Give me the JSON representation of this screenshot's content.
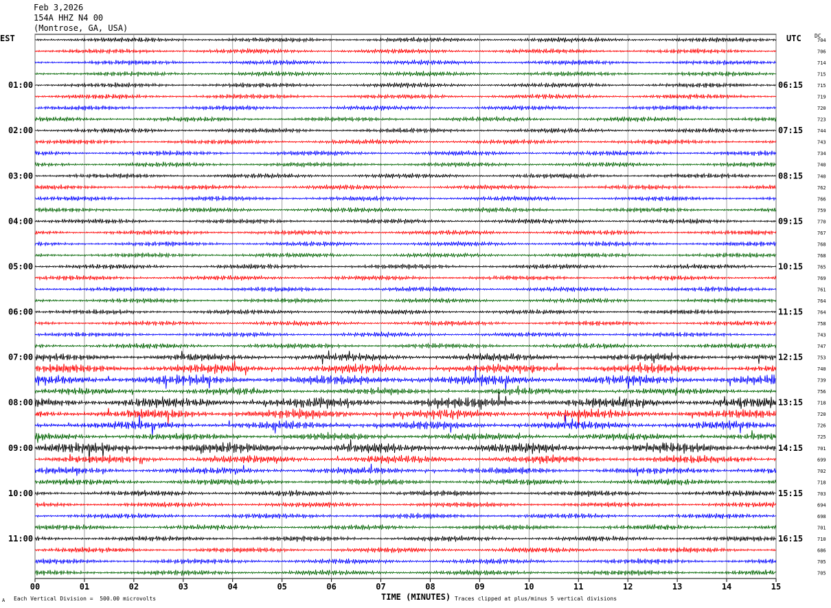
{
  "header": {
    "date": "Feb 3,2026",
    "station": "154A HHZ N4 00",
    "location": "(Montrose, GA, USA)"
  },
  "left_timezone": "EST",
  "right_timezone": "UTC",
  "dc_header": "DC",
  "footer": {
    "scale": "Each Vertical Division =  500.00 microvolts",
    "x_label": "TIME (MINUTES)",
    "clip_note": "Traces clipped at plus/minus 5 vertical divisions",
    "corner_mark": "A"
  },
  "colors": {
    "trace_cycle": [
      "#000000",
      "#ff0000",
      "#0000ff",
      "#006400"
    ],
    "grid": "#888888"
  },
  "chart_data": {
    "type": "line",
    "title": "154A HHZ N4 00",
    "xlabel": "TIME (MINUTES)",
    "xlim": [
      0,
      15
    ],
    "x_ticks": [
      "00",
      "01",
      "02",
      "03",
      "04",
      "05",
      "06",
      "07",
      "08",
      "09",
      "10",
      "11",
      "12",
      "13",
      "14",
      "15"
    ],
    "trace_count": 48,
    "minutes_per_trace": 15,
    "left_hour_labels": [
      "01:00",
      "02:00",
      "03:00",
      "04:00",
      "05:00",
      "06:00",
      "07:00",
      "08:00",
      "09:00",
      "10:00",
      "11:00"
    ],
    "right_hour_labels": [
      "06:15",
      "07:15",
      "08:15",
      "09:15",
      "10:15",
      "11:15",
      "12:15",
      "13:15",
      "14:15",
      "15:15",
      "16:15"
    ],
    "hour_label_trace_index": [
      4,
      8,
      12,
      16,
      20,
      24,
      28,
      32,
      36,
      40,
      44
    ],
    "dc_offsets": [
      704,
      706,
      714,
      715,
      715,
      719,
      720,
      723,
      744,
      743,
      734,
      740,
      740,
      762,
      766,
      759,
      770,
      767,
      768,
      768,
      765,
      769,
      761,
      764,
      764,
      758,
      743,
      747,
      753,
      740,
      739,
      756,
      718,
      720,
      726,
      725,
      701,
      699,
      702,
      718,
      703,
      694,
      698,
      701,
      710,
      686,
      705,
      705
    ],
    "amplitude_divisions": [
      0.9,
      0.9,
      0.9,
      0.9,
      0.9,
      0.9,
      0.9,
      0.9,
      0.9,
      0.9,
      0.9,
      0.9,
      0.9,
      0.9,
      0.9,
      0.9,
      0.9,
      0.9,
      0.9,
      0.9,
      0.9,
      0.9,
      0.9,
      0.9,
      0.9,
      0.9,
      0.9,
      1.0,
      1.4,
      1.8,
      2.0,
      1.3,
      2.0,
      1.8,
      1.6,
      1.4,
      2.0,
      1.5,
      1.3,
      1.2,
      1.1,
      1.0,
      1.0,
      1.0,
      1.0,
      1.0,
      1.0,
      1.0
    ]
  }
}
